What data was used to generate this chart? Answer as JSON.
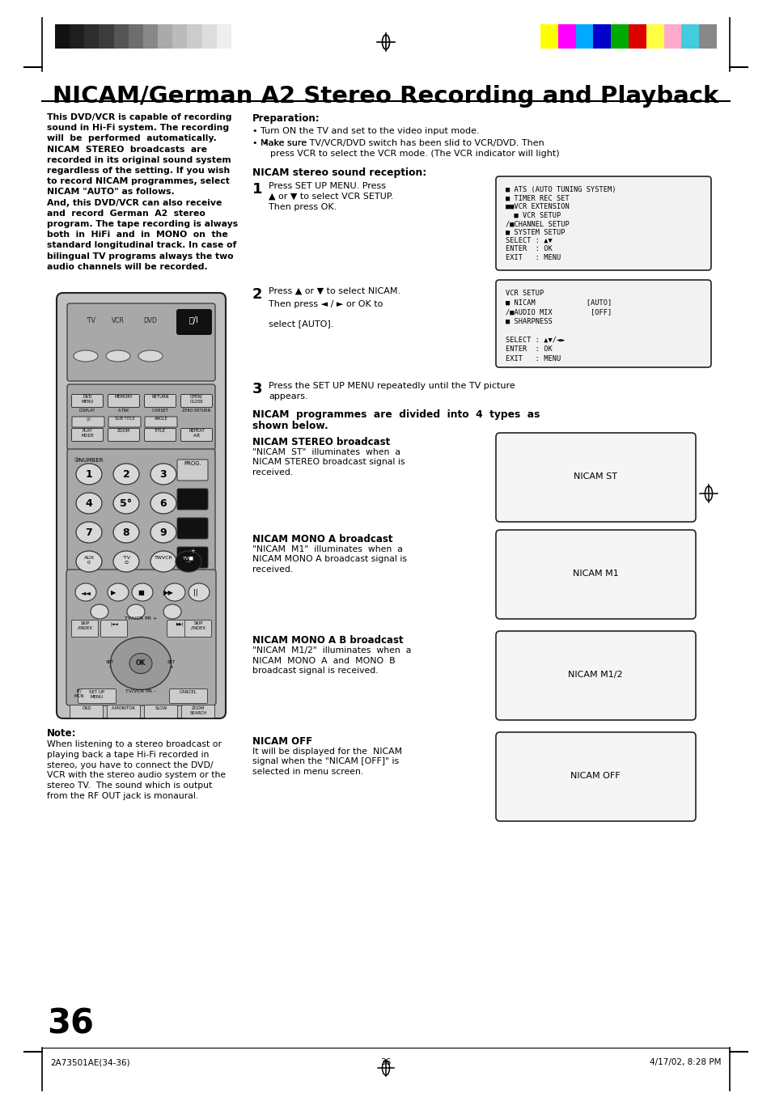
{
  "title": "NICAM/German A2 Stereo Recording and Playback",
  "bg_color": "#ffffff",
  "page_number": "36",
  "footer_left": "2A73501AE(34-36)",
  "footer_center": "36",
  "footer_right": "4/17/02, 8:28 PM",
  "grayscale_colors": [
    "#111111",
    "#1e1e1e",
    "#2d2d2d",
    "#3c3c3c",
    "#555555",
    "#6e6e6e",
    "#888888",
    "#aaaaaa",
    "#bbbbbb",
    "#cccccc",
    "#dddddd",
    "#eeeeee"
  ],
  "color_bars": [
    "#ffff00",
    "#ff00ff",
    "#00aaff",
    "#0000cc",
    "#00aa00",
    "#dd0000",
    "#ffff44",
    "#ffaacc",
    "#44ccdd",
    "#888888"
  ],
  "left_col_text": [
    "This DVD/VCR is capable of recording",
    "sound in Hi-Fi system. The recording",
    "will  be  performed  automatically.",
    "NICAM  STEREO  broadcasts  are",
    "recorded in its original sound system",
    "regardless of the setting. If you wish",
    "to record NICAM programmes, select",
    "NICAM \"AUTO\" as follows.",
    "And, this DVD/VCR can also receive",
    "and  record  German  A2  stereo",
    "program. The tape recording is always",
    "both  in  HiFi  and  in  MONO  on  the",
    "standard longitudinal track. In case of",
    "bilingual TV programs always the two",
    "audio channels will be recorded."
  ],
  "note_title": "Note:",
  "note_lines": [
    "When listening to a stereo broadcast or",
    "playing back a tape Hi-Fi recorded in",
    "stereo, you have to connect the DVD/",
    "VCR with the stereo audio system or the",
    "stereo TV.  The sound which is output",
    "from the RF OUT jack is monaural."
  ],
  "prep_title": "Preparation:",
  "prep_bullet1": "Turn ON the TV and set to the video input mode.",
  "prep_bullet2a": "Make sure ",
  "prep_bullet2b": "TV/VCR/DVD",
  "prep_bullet2c": " switch has been slid to VCR/DVD. Then",
  "prep_bullet2d": "press ",
  "prep_bullet2e": "VCR",
  "prep_bullet2f": " to select the VCR mode. (The VCR indicator will light)",
  "nicam_stereo_title": "NICAM stereo sound reception:",
  "step1_num": "1",
  "step1_a": "Press ",
  "step1_bold": "SET UP MENU",
  "step1_b": ". Press",
  "step1_c": "▲ or ▼ to select VCR SETUP.",
  "step1_d": "Then press ",
  "step1_e": "OK",
  "step1_f": ".",
  "step2_num": "2",
  "step2_a": "Press ▲ or ▼ to select NICAM.",
  "step2_b": "Then press ◄ / ► or ",
  "step2_bold": "OK",
  "step2_c": " to",
  "step2_d": "select [AUTO].",
  "step3_num": "3",
  "step3_a": "Press the ",
  "step3_bold": "SET UP MENU",
  "step3_b": " repeatedly until the TV picture",
  "step3_c": "appears.",
  "nicam_types_title": "NICAM  programmes  are  divided  into  4  types  as",
  "nicam_types_title2": "shown below.",
  "nicam_st_title": "NICAM STEREO broadcast",
  "nicam_st_body1": "\"NICAM  ST\"  illuminates  when  a",
  "nicam_st_body2": "NICAM STEREO broadcast signal is",
  "nicam_st_body3": "received.",
  "nicam_st_label": "NICAM ST",
  "nicam_m1_title": "NICAM MONO A broadcast",
  "nicam_m1_body1": "\"NICAM  M1\"  illuminates  when  a",
  "nicam_m1_body2": "NICAM MONO A broadcast signal is",
  "nicam_m1_body3": "received.",
  "nicam_m1_label": "NICAM M1",
  "nicam_m12_title": "NICAM MONO A B broadcast",
  "nicam_m12_body1": "\"NICAM  M1/2\"  illuminates  when  a",
  "nicam_m12_body2": "NICAM  MONO  A  and  MONO  B",
  "nicam_m12_body3": "broadcast signal is received.",
  "nicam_m12_label": "NICAM M1/2",
  "nicam_off_title": "NICAM OFF",
  "nicam_off_body1": "It will be displayed for the  NICAM",
  "nicam_off_body2": "signal when the \"NICAM [OFF]\" is",
  "nicam_off_body3": "selected in menu screen.",
  "nicam_off_label": "NICAM OFF",
  "menu1_lines": [
    "■ ATS (AUTO TUNING SYSTEM)",
    "■ TIMER REC SET",
    "■■VCR EXTENSION",
    "  ■ VCR SETUP",
    "/■CHANNEL SETUP",
    "■ SYSTEM SETUP",
    "SELECT : ▲▼",
    "ENTER  : OK",
    "EXIT   : MENU"
  ],
  "menu2_lines": [
    "VCR SETUP",
    "■ NICAM            [AUTO]",
    "/■AUDIO MIX         [OFF]",
    "■ SHARPNESS",
    "",
    "SELECT : ▲▼/◄►",
    "ENTER  : OK",
    "EXIT   : MENU"
  ]
}
